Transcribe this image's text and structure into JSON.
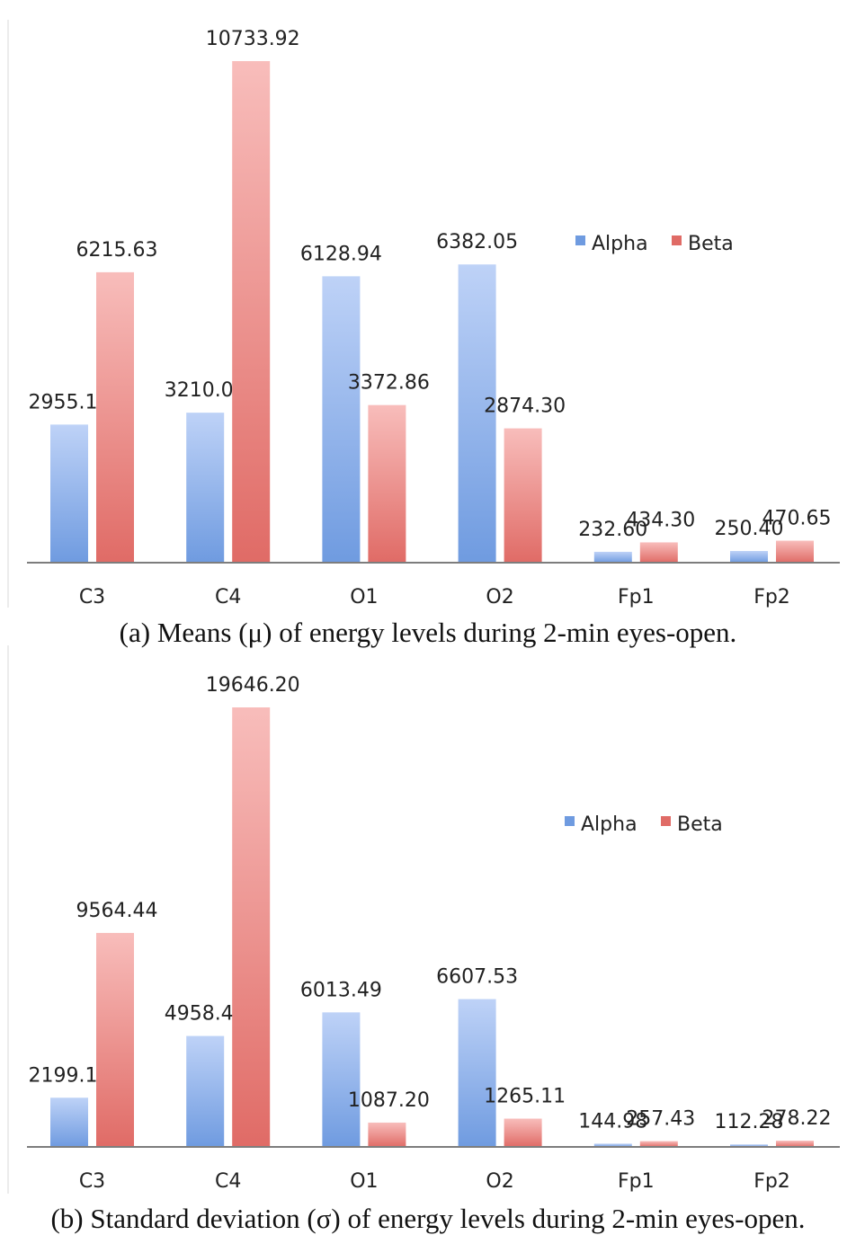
{
  "chart_data": [
    {
      "type": "bar",
      "categories": [
        "C3",
        "C4",
        "O1",
        "O2",
        "Fp1",
        "Fp2"
      ],
      "series": [
        {
          "name": "Alpha",
          "values": [
            2955.12,
            3210.09,
            6128.94,
            6382.05,
            232.6,
            250.4
          ],
          "labels": [
            "2955.12",
            "3210.09",
            "6128.94",
            "6382.05",
            "232.60",
            "250.40"
          ]
        },
        {
          "name": "Beta",
          "values": [
            6215.63,
            10733.92,
            3372.86,
            2874.3,
            434.3,
            470.65
          ],
          "labels": [
            "6215.63",
            "10733.92",
            "3372.86",
            "2874.30",
            "434.30",
            "470.65"
          ]
        }
      ],
      "ylim": [
        0,
        10733.92
      ],
      "grid": false,
      "legend": "right",
      "colors": {
        "Alpha": "#6f9be0",
        "Beta": "#e06b66"
      },
      "caption": "(a) Means (μ) of energy levels during 2-min eyes-open."
    },
    {
      "type": "bar",
      "categories": [
        "C3",
        "C4",
        "O1",
        "O2",
        "Fp1",
        "Fp2"
      ],
      "series": [
        {
          "name": "Alpha",
          "values": [
            2199.19,
            4958.45,
            6013.49,
            6607.53,
            144.98,
            112.28
          ],
          "labels": [
            "2199.19",
            "4958.45",
            "6013.49",
            "6607.53",
            "144.98",
            "112.28"
          ]
        },
        {
          "name": "Beta",
          "values": [
            9564.44,
            19646.2,
            1087.2,
            1265.11,
            257.43,
            278.22
          ],
          "labels": [
            "9564.44",
            "19646.20",
            "1087.20",
            "1265.11",
            "257.43",
            "278.22"
          ]
        }
      ],
      "ylim": [
        0,
        19646.2
      ],
      "grid": false,
      "legend": "right",
      "colors": {
        "Alpha": "#6f9be0",
        "Beta": "#e06b66"
      },
      "caption": "(b) Standard deviation (σ) of energy levels during 2-min eyes-open."
    }
  ]
}
